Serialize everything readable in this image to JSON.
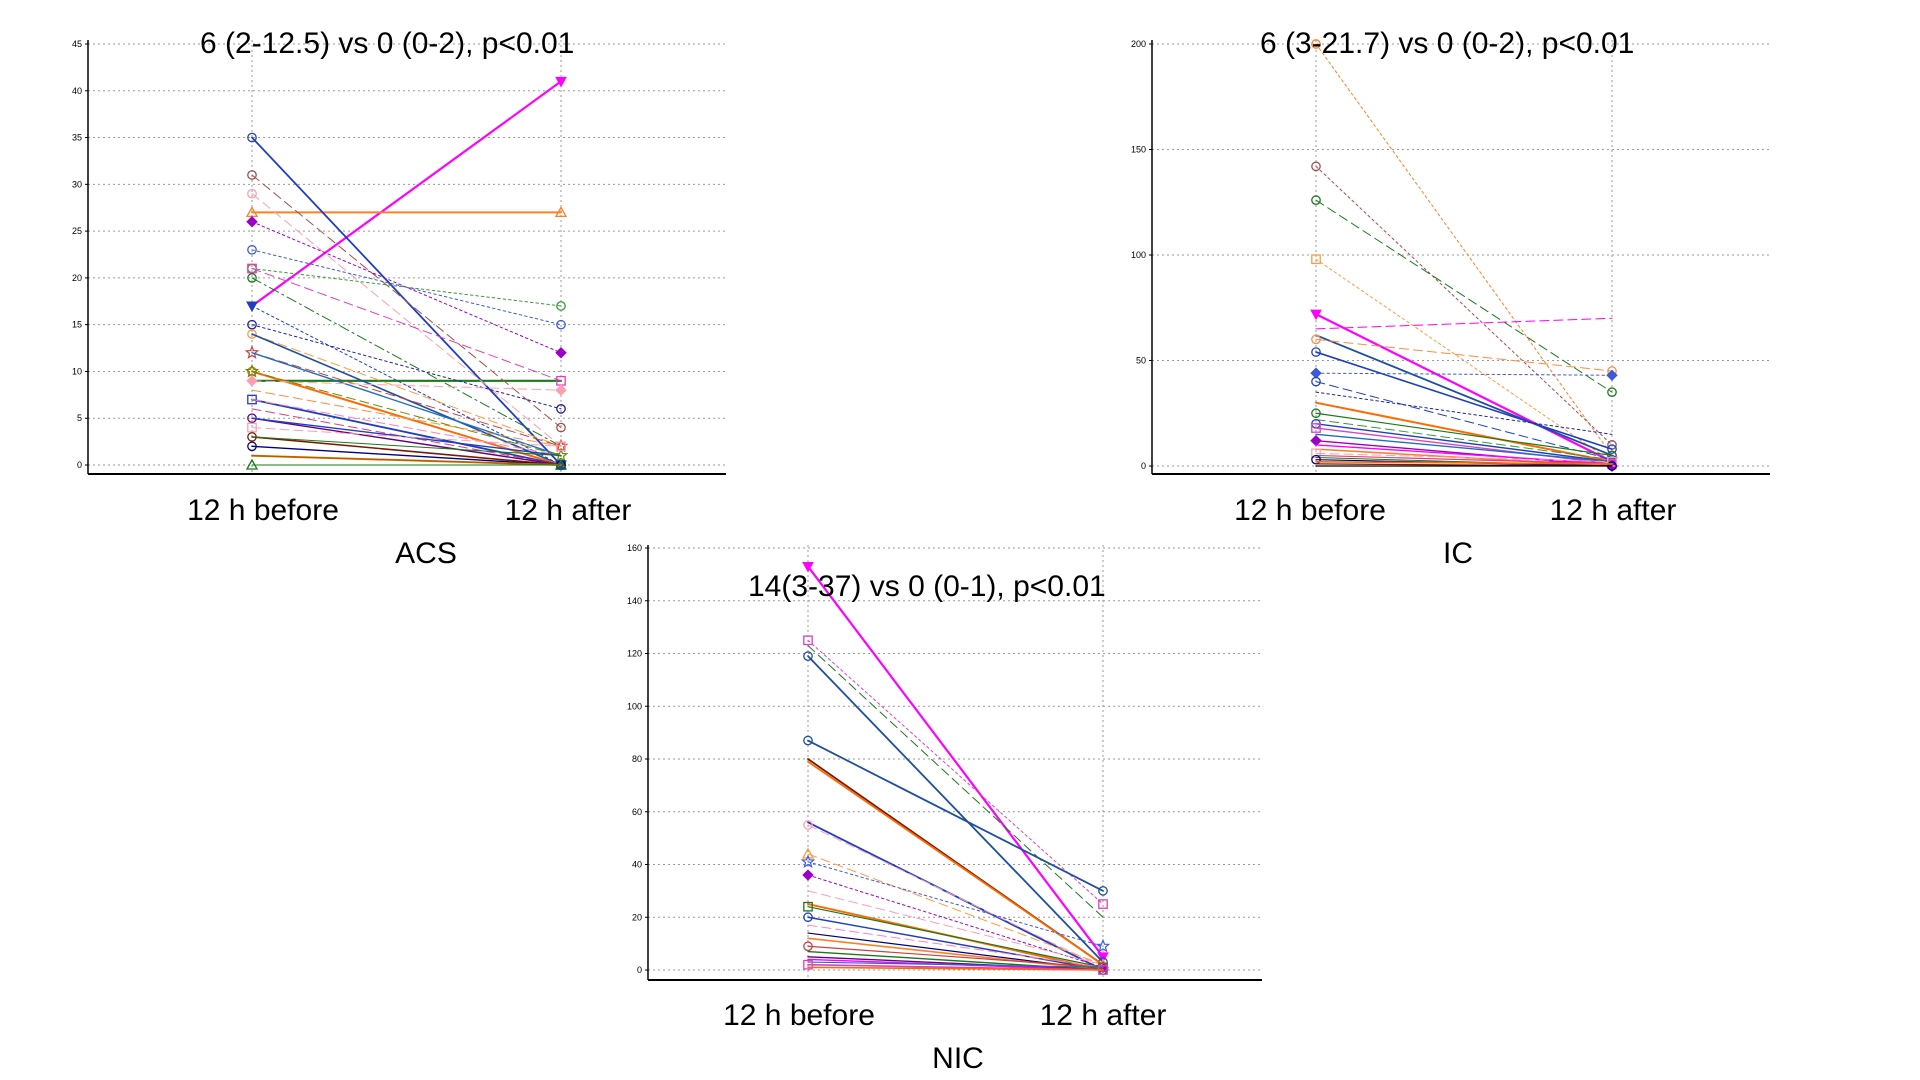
{
  "chart_data": [
    {
      "id": "acs",
      "type": "line",
      "title": "6 (2-12.5) vs 0 (0-2), p<0.01",
      "xlabel": "ACS",
      "ylabel": "",
      "categories": [
        "12 h before",
        "12 h after"
      ],
      "ylim": [
        0,
        45
      ],
      "yticks": [
        0,
        5,
        10,
        15,
        20,
        25,
        30,
        35,
        40,
        45
      ],
      "grid": true,
      "legend": "none",
      "series": [
        {
          "values": [
            17,
            41
          ],
          "color": "#ff00ff",
          "dash": "solid",
          "width": 2.2,
          "marker": "tri-down"
        },
        {
          "values": [
            27,
            27
          ],
          "color": "#ff7f27",
          "dash": "solid",
          "width": 2,
          "marker": "tri-up"
        },
        {
          "values": [
            35,
            0
          ],
          "color": "#1f3fbf",
          "dash": "solid",
          "width": 1.8,
          "marker": "circle"
        },
        {
          "values": [
            9,
            9
          ],
          "color": "#1a7a1a",
          "dash": "solid",
          "width": 2.2,
          "marker": "none"
        },
        {
          "values": [
            31,
            4
          ],
          "color": "#a05050",
          "dash": "dash",
          "width": 1,
          "marker": "circle"
        },
        {
          "values": [
            29,
            2
          ],
          "color": "#ff9eb0",
          "dash": "dash",
          "width": 1,
          "marker": "circle"
        },
        {
          "values": [
            26,
            12
          ],
          "color": "#9b00c8",
          "dash": "dot",
          "width": 1,
          "marker": "diamond"
        },
        {
          "values": [
            23,
            15
          ],
          "color": "#3c5ad8",
          "dash": "dot",
          "width": 1,
          "marker": "circle"
        },
        {
          "values": [
            21,
            17
          ],
          "color": "#3a9a3a",
          "dash": "dot",
          "width": 1,
          "marker": "circle"
        },
        {
          "values": [
            21,
            9
          ],
          "color": "#e040c0",
          "dash": "dash",
          "width": 1,
          "marker": "square"
        },
        {
          "values": [
            20,
            2
          ],
          "color": "#1a7a1a",
          "dash": "dashdot",
          "width": 1,
          "marker": "circle"
        },
        {
          "values": [
            17,
            0
          ],
          "color": "#1f3fbf",
          "dash": "dot",
          "width": 1,
          "marker": "tri-down"
        },
        {
          "values": [
            15,
            6
          ],
          "color": "#2020a0",
          "dash": "dot",
          "width": 1,
          "marker": "circle"
        },
        {
          "values": [
            14,
            2
          ],
          "color": "#ff9a40",
          "dash": "dash",
          "width": 1,
          "marker": "circle"
        },
        {
          "values": [
            14,
            0
          ],
          "color": "#1f4fa0",
          "dash": "solid",
          "width": 1.6,
          "marker": "none"
        },
        {
          "values": [
            12,
            2
          ],
          "color": "#d04040",
          "dash": "dash",
          "width": 1,
          "marker": "star"
        },
        {
          "values": [
            12,
            1
          ],
          "color": "#1f6fbf",
          "dash": "solid",
          "width": 1.4,
          "marker": "none"
        },
        {
          "values": [
            10,
            0
          ],
          "color": "#ff6a00",
          "dash": "solid",
          "width": 2,
          "marker": "circle"
        },
        {
          "values": [
            10,
            1
          ],
          "color": "#6a8a00",
          "dash": "dash",
          "width": 1,
          "marker": "star"
        },
        {
          "values": [
            9,
            8
          ],
          "color": "#ff9eb0",
          "dash": "dash",
          "width": 1,
          "marker": "diamond"
        },
        {
          "values": [
            8,
            2
          ],
          "color": "#ff8c40",
          "dash": "dash",
          "width": 1,
          "marker": "none"
        },
        {
          "values": [
            7,
            0
          ],
          "color": "#1f3fbf",
          "dash": "solid",
          "width": 1.8,
          "marker": "square"
        },
        {
          "values": [
            7,
            1
          ],
          "color": "#ff80c0",
          "dash": "dash",
          "width": 1,
          "marker": "none"
        },
        {
          "values": [
            6,
            0
          ],
          "color": "#e04080",
          "dash": "dash",
          "width": 1,
          "marker": "none"
        },
        {
          "values": [
            5,
            0
          ],
          "color": "#6a0080",
          "dash": "solid",
          "width": 1.4,
          "marker": "circle"
        },
        {
          "values": [
            5,
            1
          ],
          "color": "#1f3fbf",
          "dash": "solid",
          "width": 1.4,
          "marker": "none"
        },
        {
          "values": [
            4,
            2
          ],
          "color": "#ff9eb0",
          "dash": "dash",
          "width": 1,
          "marker": "square"
        },
        {
          "values": [
            3,
            0
          ],
          "color": "#7a1a00",
          "dash": "solid",
          "width": 1.6,
          "marker": "circle"
        },
        {
          "values": [
            3,
            1
          ],
          "color": "#1a7a1a",
          "dash": "solid",
          "width": 1,
          "marker": "none"
        },
        {
          "values": [
            2,
            0
          ],
          "color": "#000080",
          "dash": "solid",
          "width": 1.4,
          "marker": "circle"
        },
        {
          "values": [
            1,
            0
          ],
          "color": "#ff6a00",
          "dash": "solid",
          "width": 2,
          "marker": "none"
        },
        {
          "values": [
            1,
            0
          ],
          "color": "#8a6a00",
          "dash": "solid",
          "width": 1,
          "marker": "none"
        },
        {
          "values": [
            0,
            0
          ],
          "color": "#1a7a1a",
          "dash": "solid",
          "width": 1,
          "marker": "tri-up"
        }
      ]
    },
    {
      "id": "ic",
      "type": "line",
      "title": "6 (3-21.7) vs 0 (0-2), p<0.01",
      "xlabel": "IC",
      "ylabel": "",
      "categories": [
        "12 h before",
        "12 h after"
      ],
      "ylim": [
        0,
        200
      ],
      "yticks": [
        0,
        50,
        100,
        150,
        200
      ],
      "grid": true,
      "legend": "none",
      "series": [
        {
          "values": [
            200,
            5
          ],
          "color": "#ff7f27",
          "dash": "dot",
          "width": 1,
          "marker": "circle"
        },
        {
          "values": [
            142,
            10
          ],
          "color": "#a05050",
          "dash": "dot",
          "width": 1,
          "marker": "circle"
        },
        {
          "values": [
            126,
            35
          ],
          "color": "#1a7a1a",
          "dash": "dash",
          "width": 1,
          "marker": "circle"
        },
        {
          "values": [
            98,
            2
          ],
          "color": "#ff9a40",
          "dash": "dot",
          "width": 1,
          "marker": "square"
        },
        {
          "values": [
            72,
            2
          ],
          "color": "#ff00ff",
          "dash": "solid",
          "width": 2.2,
          "marker": "tri-down"
        },
        {
          "values": [
            65,
            70
          ],
          "color": "#ff00ff",
          "dash": "dash",
          "width": 1,
          "marker": "none"
        },
        {
          "values": [
            62,
            5
          ],
          "color": "#1f4fa0",
          "dash": "solid",
          "width": 1.8,
          "marker": "none"
        },
        {
          "values": [
            60,
            45
          ],
          "color": "#ff8c40",
          "dash": "dash",
          "width": 1,
          "marker": "circle"
        },
        {
          "values": [
            54,
            8
          ],
          "color": "#1f3fbf",
          "dash": "solid",
          "width": 1.6,
          "marker": "circle"
        },
        {
          "values": [
            44,
            43
          ],
          "color": "#3c5ad8",
          "dash": "dot",
          "width": 1,
          "marker": "diamond"
        },
        {
          "values": [
            40,
            3
          ],
          "color": "#1f3fbf",
          "dash": "dash",
          "width": 1,
          "marker": "circle"
        },
        {
          "values": [
            35,
            15
          ],
          "color": "#2020a0",
          "dash": "dot",
          "width": 1,
          "marker": "none"
        },
        {
          "values": [
            30,
            2
          ],
          "color": "#ff6a00",
          "dash": "solid",
          "width": 2,
          "marker": "none"
        },
        {
          "values": [
            25,
            5
          ],
          "color": "#1a7a1a",
          "dash": "solid",
          "width": 1.2,
          "marker": "circle"
        },
        {
          "values": [
            22,
            3
          ],
          "color": "#3a9a3a",
          "dash": "dash",
          "width": 1,
          "marker": "none"
        },
        {
          "values": [
            20,
            2
          ],
          "color": "#1f3fbf",
          "dash": "solid",
          "width": 1.4,
          "marker": "circle"
        },
        {
          "values": [
            18,
            1
          ],
          "color": "#e040c0",
          "dash": "solid",
          "width": 1.4,
          "marker": "square"
        },
        {
          "values": [
            15,
            2
          ],
          "color": "#1f6fbf",
          "dash": "solid",
          "width": 1.4,
          "marker": "none"
        },
        {
          "values": [
            12,
            0
          ],
          "color": "#9b00c8",
          "dash": "solid",
          "width": 1.4,
          "marker": "diamond"
        },
        {
          "values": [
            10,
            1
          ],
          "color": "#ff00ff",
          "dash": "solid",
          "width": 1.4,
          "marker": "none"
        },
        {
          "values": [
            8,
            0
          ],
          "color": "#ff7f27",
          "dash": "solid",
          "width": 1.6,
          "marker": "none"
        },
        {
          "values": [
            6,
            2
          ],
          "color": "#ff9eb0",
          "dash": "dash",
          "width": 1,
          "marker": "square"
        },
        {
          "values": [
            5,
            1
          ],
          "color": "#e04080",
          "dash": "solid",
          "width": 1.2,
          "marker": "none"
        },
        {
          "values": [
            4,
            0
          ],
          "color": "#1a7a1a",
          "dash": "solid",
          "width": 1,
          "marker": "none"
        },
        {
          "values": [
            3,
            0
          ],
          "color": "#000080",
          "dash": "solid",
          "width": 1.2,
          "marker": "circle"
        },
        {
          "values": [
            2,
            1
          ],
          "color": "#ff6a00",
          "dash": "solid",
          "width": 1.6,
          "marker": "none"
        },
        {
          "values": [
            1,
            0
          ],
          "color": "#7a1a00",
          "dash": "solid",
          "width": 1.2,
          "marker": "none"
        },
        {
          "values": [
            0,
            0
          ],
          "color": "#000000",
          "dash": "solid",
          "width": 1.2,
          "marker": "none"
        }
      ]
    },
    {
      "id": "nic",
      "type": "line",
      "title": "14(3-37) vs 0 (0-1), p<0.01",
      "xlabel": "NIC",
      "ylabel": "",
      "categories": [
        "12 h before",
        "12 h after"
      ],
      "ylim": [
        0,
        160
      ],
      "yticks": [
        0,
        20,
        40,
        60,
        80,
        100,
        120,
        140,
        160
      ],
      "grid": true,
      "legend": "none",
      "series": [
        {
          "values": [
            153,
            5
          ],
          "color": "#ff00ff",
          "dash": "solid",
          "width": 2.2,
          "marker": "tri-down"
        },
        {
          "values": [
            125,
            25
          ],
          "color": "#e040c0",
          "dash": "dot",
          "width": 1,
          "marker": "square"
        },
        {
          "values": [
            123,
            20
          ],
          "color": "#1a7a1a",
          "dash": "dash",
          "width": 1,
          "marker": "none"
        },
        {
          "values": [
            119,
            3
          ],
          "color": "#1f4fa0",
          "dash": "solid",
          "width": 1.8,
          "marker": "circle"
        },
        {
          "values": [
            87,
            30
          ],
          "color": "#1f4fa0",
          "dash": "solid",
          "width": 1.8,
          "marker": "circle"
        },
        {
          "values": [
            80,
            2
          ],
          "color": "#7a1a00",
          "dash": "solid",
          "width": 1.8,
          "marker": "none"
        },
        {
          "values": [
            79,
            2
          ],
          "color": "#ff6a00",
          "dash": "solid",
          "width": 1.8,
          "marker": "none"
        },
        {
          "values": [
            56,
            0
          ],
          "color": "#1f3fbf",
          "dash": "solid",
          "width": 1.8,
          "marker": "none"
        },
        {
          "values": [
            55,
            1
          ],
          "color": "#ff9eb0",
          "dash": "dash",
          "width": 1,
          "marker": "circle"
        },
        {
          "values": [
            44,
            2
          ],
          "color": "#ff9a40",
          "dash": "dash",
          "width": 1,
          "marker": "tri-up"
        },
        {
          "values": [
            41,
            9
          ],
          "color": "#3c5ad8",
          "dash": "dot",
          "width": 1,
          "marker": "star"
        },
        {
          "values": [
            36,
            1
          ],
          "color": "#9b00c8",
          "dash": "dot",
          "width": 1,
          "marker": "diamond"
        },
        {
          "values": [
            30,
            2
          ],
          "color": "#ff9eb0",
          "dash": "dash",
          "width": 1,
          "marker": "none"
        },
        {
          "values": [
            25,
            0
          ],
          "color": "#ff6a00",
          "dash": "solid",
          "width": 2,
          "marker": "none"
        },
        {
          "values": [
            24,
            1
          ],
          "color": "#1a7a1a",
          "dash": "solid",
          "width": 1.2,
          "marker": "square"
        },
        {
          "values": [
            20,
            0
          ],
          "color": "#1f3fbf",
          "dash": "solid",
          "width": 1.4,
          "marker": "circle"
        },
        {
          "values": [
            17,
            1
          ],
          "color": "#ff80c0",
          "dash": "dash",
          "width": 1,
          "marker": "none"
        },
        {
          "values": [
            14,
            0
          ],
          "color": "#000080",
          "dash": "solid",
          "width": 1.2,
          "marker": "none"
        },
        {
          "values": [
            12,
            0
          ],
          "color": "#ff7f27",
          "dash": "solid",
          "width": 1.6,
          "marker": "none"
        },
        {
          "values": [
            9,
            1
          ],
          "color": "#d04040",
          "dash": "solid",
          "width": 1.2,
          "marker": "circle"
        },
        {
          "values": [
            7,
            0
          ],
          "color": "#1a7a1a",
          "dash": "solid",
          "width": 1.4,
          "marker": "none"
        },
        {
          "values": [
            5,
            0
          ],
          "color": "#6a0080",
          "dash": "solid",
          "width": 1.4,
          "marker": "none"
        },
        {
          "values": [
            4,
            0
          ],
          "color": "#ff00ff",
          "dash": "solid",
          "width": 1.4,
          "marker": "none"
        },
        {
          "values": [
            3,
            1
          ],
          "color": "#1f6fbf",
          "dash": "solid",
          "width": 1.2,
          "marker": "none"
        },
        {
          "values": [
            2,
            0
          ],
          "color": "#e040c0",
          "dash": "solid",
          "width": 1.6,
          "marker": "square"
        },
        {
          "values": [
            1,
            0
          ],
          "color": "#ff6a00",
          "dash": "solid",
          "width": 1.6,
          "marker": "none"
        }
      ]
    }
  ]
}
